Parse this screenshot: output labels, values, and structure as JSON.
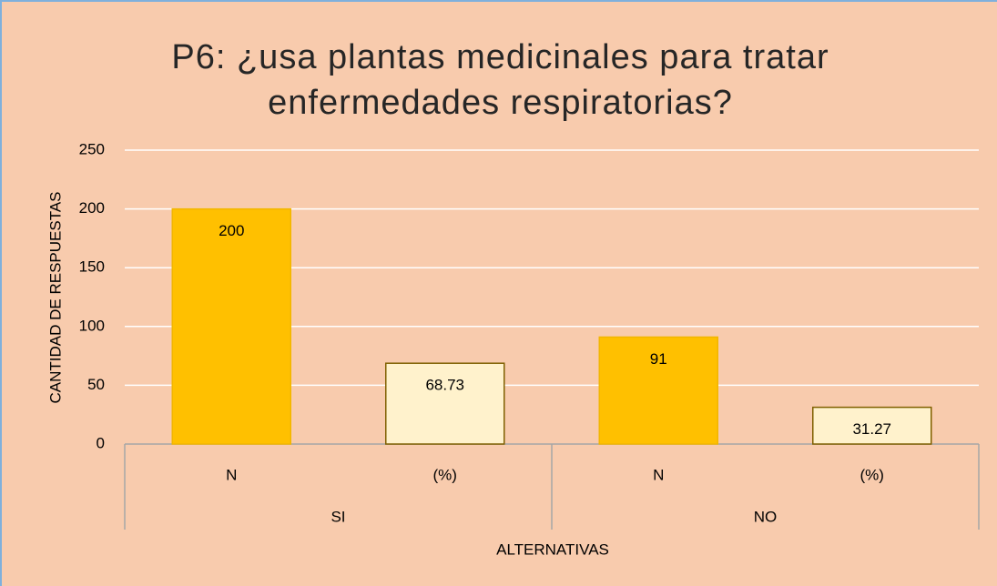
{
  "chart_data": {
    "type": "bar",
    "title": "P6: ¿usa plantas medicinales para tratar enfermedades respiratorias?",
    "categories": [
      "N",
      "(%)",
      "N",
      "(%)"
    ],
    "groups": [
      "SI",
      "NO"
    ],
    "values": [
      200,
      68.73,
      91,
      31.27
    ],
    "colors": [
      "#ffc000",
      "#fff2cc",
      "#ffc000",
      "#fff2cc"
    ],
    "edge_colors": [
      "#f2b600",
      "#7f6000",
      "#f2b600",
      "#7f6000"
    ],
    "xlabel": "ALTERNATIVAS",
    "ylabel": "CANTIDAD DE RESPUESTAS",
    "ylim": [
      0,
      250
    ],
    "yticks": [
      0,
      50,
      100,
      150,
      200,
      250
    ],
    "grid": true
  }
}
